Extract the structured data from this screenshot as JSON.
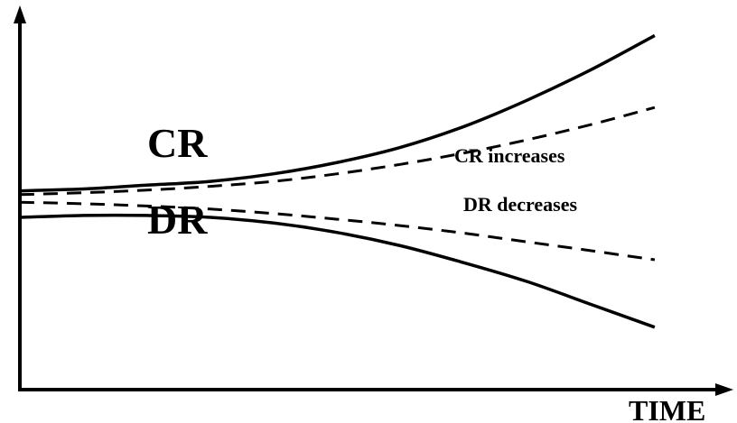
{
  "chart_data": {
    "type": "line",
    "xlabel": "TIME",
    "ylabel": "",
    "grid": false,
    "legend": "none",
    "x": [
      0,
      1,
      2,
      3,
      4,
      5,
      6,
      7,
      8,
      9,
      10
    ],
    "series": [
      {
        "name": "CR",
        "style": "solid",
        "values": [
          5.2,
          5.25,
          5.35,
          5.45,
          5.65,
          5.95,
          6.35,
          6.9,
          7.6,
          8.4,
          9.3
        ]
      },
      {
        "name": "",
        "style": "dashed",
        "values": [
          5.1,
          5.15,
          5.22,
          5.32,
          5.45,
          5.65,
          5.9,
          6.2,
          6.55,
          6.95,
          7.4
        ]
      },
      {
        "name": "",
        "style": "dashed",
        "values": [
          4.9,
          4.86,
          4.8,
          4.72,
          4.6,
          4.45,
          4.28,
          4.08,
          3.85,
          3.62,
          3.38
        ]
      },
      {
        "name": "DR",
        "style": "solid",
        "values": [
          4.5,
          4.55,
          4.55,
          4.5,
          4.35,
          4.1,
          3.75,
          3.3,
          2.8,
          2.2,
          1.6
        ]
      }
    ],
    "annotations": [
      "CR",
      "DR",
      "CR increases",
      "DR decreases"
    ],
    "ylim": [
      0,
      10
    ],
    "xlim": [
      0,
      10.5
    ]
  }
}
